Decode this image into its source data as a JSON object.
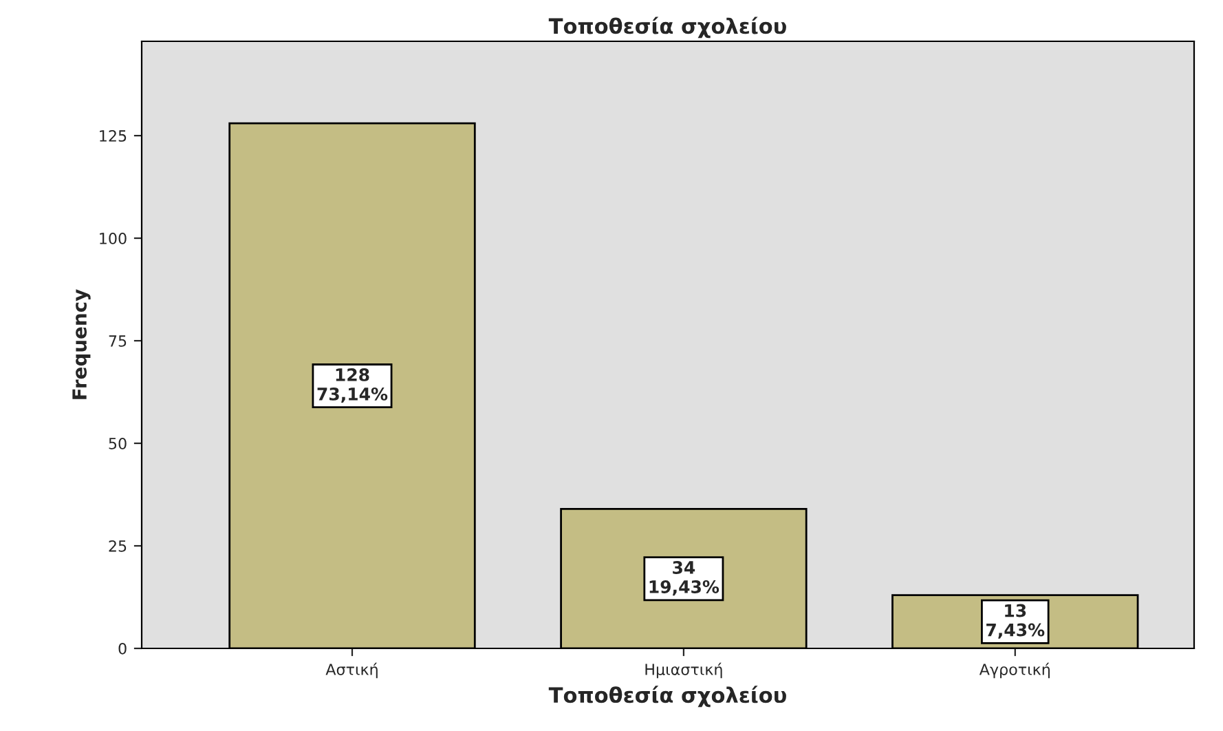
{
  "chart_data": {
    "type": "bar",
    "title": "Τοποθεσία σχολείου",
    "categories": [
      "Αστική",
      "Ημιαστική",
      "Αγροτική"
    ],
    "values": [
      128,
      34,
      13
    ],
    "color": "#c4bd84",
    "value_labels": [
      "128\n73,14%",
      "34\n19,43%",
      "13\n7,43%"
    ],
    "xlabel": "Τοποθεσία σχολείου",
    "ylabel": "Frequency",
    "ylim": [
      0,
      148
    ],
    "yticks": [
      0,
      25,
      50,
      75,
      100,
      125
    ],
    "grid": false,
    "legend": false
  }
}
